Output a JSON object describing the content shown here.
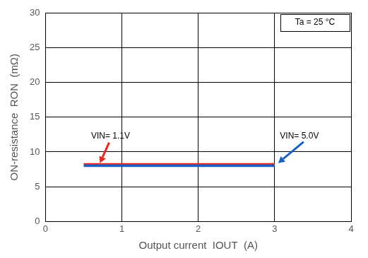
{
  "chart_data": {
    "type": "line",
    "x_label": "Output current  IOUT  (A)",
    "y_label": "ON-resistance  RON  (mΩ)",
    "x": [
      0.5,
      3.0
    ],
    "series": [
      {
        "name": "VIN= 1.1V",
        "color": "#e8281e",
        "values": [
          8.3,
          8.3
        ]
      },
      {
        "name": "VIN= 5.0V",
        "color": "#1a5fc8",
        "values": [
          8.1,
          8.1
        ]
      }
    ],
    "xlim": [
      0,
      4
    ],
    "xticks": [
      0,
      1,
      2,
      3,
      4
    ],
    "ylim": [
      0,
      30
    ],
    "yticks": [
      0,
      5,
      10,
      15,
      20,
      25,
      30
    ],
    "grid": true,
    "annotations": [
      "Ta = 25 °C"
    ]
  }
}
